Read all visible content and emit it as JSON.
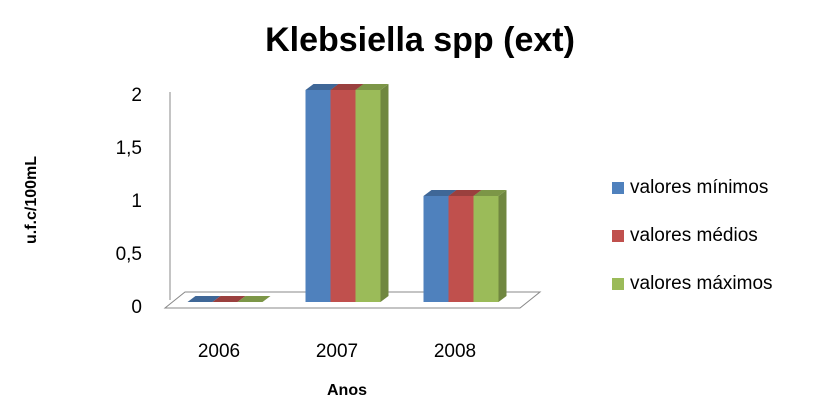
{
  "chart_data": {
    "type": "bar",
    "title": "Klebsiella spp (ext)",
    "x_label": "Anos",
    "y_label": "u.f.c/100mL",
    "categories": [
      "2006",
      "2007",
      "2008"
    ],
    "series": [
      {
        "name": "valores mínimos",
        "color": "#4f81bd",
        "values": [
          0,
          2,
          1
        ]
      },
      {
        "name": "valores médios",
        "color": "#c0504d",
        "values": [
          0,
          2,
          1
        ]
      },
      {
        "name": "valores máximos",
        "color": "#9bbb59",
        "values": [
          0,
          2,
          1
        ]
      }
    ],
    "ylim": [
      0,
      2
    ],
    "yticks": [
      0,
      {
        "value": 0.5,
        "label": "0,5"
      },
      1,
      {
        "value": 1.5,
        "label": "1,5"
      },
      2
    ],
    "legend": "right"
  }
}
